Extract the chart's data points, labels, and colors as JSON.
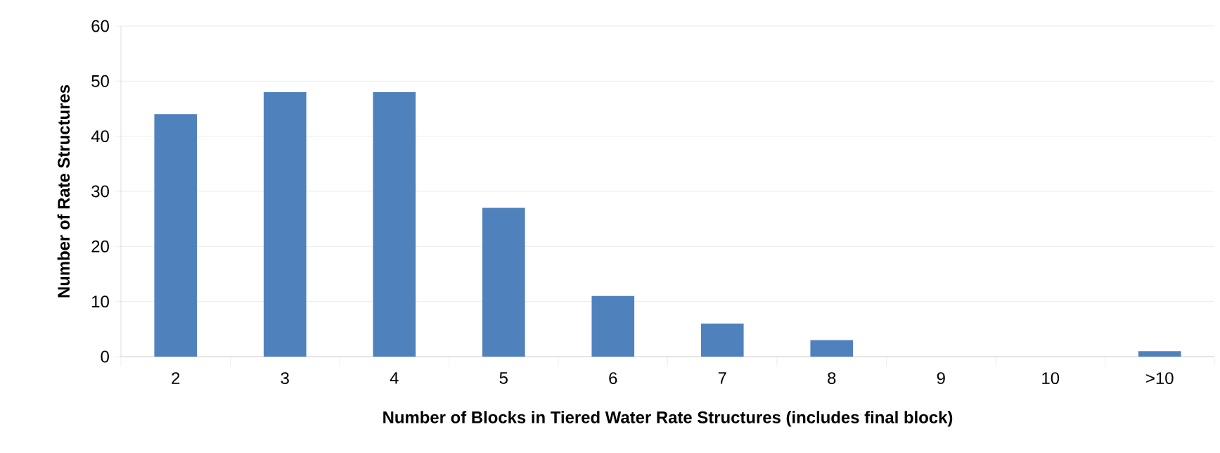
{
  "chart_data": {
    "type": "bar",
    "xlabel": "Number of Blocks in Tiered Water Rate Structures (includes final block)",
    "ylabel": "Number of Rate Structures",
    "categories": [
      "2",
      "3",
      "4",
      "5",
      "6",
      "7",
      "8",
      "9",
      "10",
      ">10"
    ],
    "values": [
      44,
      48,
      48,
      27,
      11,
      6,
      3,
      0,
      0,
      1
    ],
    "color": "#4f81bd",
    "ylim": [
      0,
      60
    ],
    "yticks": [
      0,
      10,
      20,
      30,
      40,
      50,
      60
    ],
    "grid": "y"
  }
}
